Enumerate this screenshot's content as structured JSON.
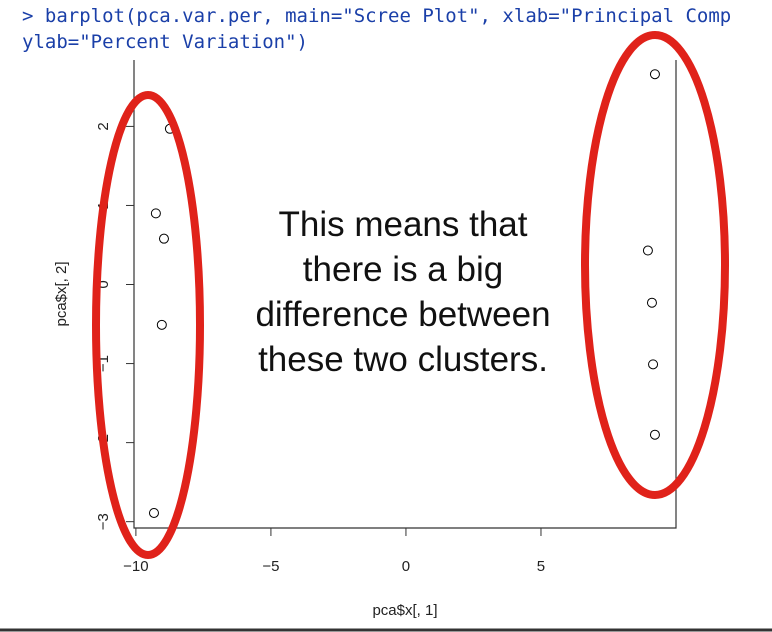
{
  "console": {
    "lines": [
      "> barplot(pca.var.per, main=\"Scree Plot\", xlab=\"Principal Comp",
      "ylab=\"Percent Variation\")"
    ]
  },
  "chart_data": {
    "type": "scatter",
    "x": [
      -8.74,
      -9.26,
      -8.96,
      -9.04,
      -9.33,
      9.22,
      8.96,
      9.11,
      9.15,
      9.22
    ],
    "values": [
      1.97,
      0.9,
      0.58,
      -0.51,
      -2.89,
      2.66,
      0.43,
      -0.23,
      -1.01,
      -1.9
    ],
    "xlabel": "pca$x[, 1]",
    "ylabel": "pca$x[, 2]",
    "xlim": [
      -10.07,
      10.0
    ],
    "ylim": [
      -3.08,
      2.84
    ],
    "xticks": [
      {
        "value": -10,
        "label": "−10"
      },
      {
        "value": -5,
        "label": "−5"
      },
      0,
      5
    ],
    "yticks": [
      {
        "value": -3,
        "label": "−3"
      },
      {
        "value": -2,
        "label": "−2"
      },
      {
        "value": -1,
        "label": "−1"
      },
      0,
      1,
      2
    ],
    "annotation": [
      "This means that",
      "there is a big",
      "difference between",
      "these two clusters."
    ],
    "color": "#000000"
  }
}
